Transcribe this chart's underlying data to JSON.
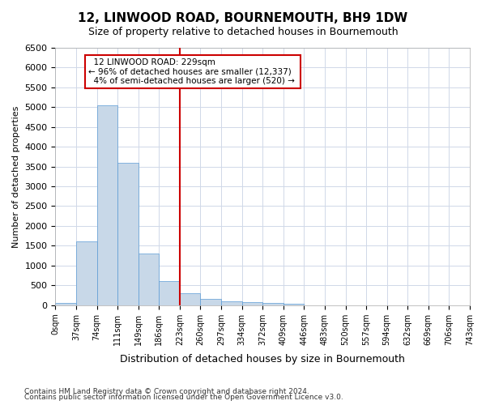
{
  "title": "12, LINWOOD ROAD, BOURNEMOUTH, BH9 1DW",
  "subtitle": "Size of property relative to detached houses in Bournemouth",
  "xlabel": "Distribution of detached houses by size in Bournemouth",
  "ylabel": "Number of detached properties",
  "footnote1": "Contains HM Land Registry data © Crown copyright and database right 2024.",
  "footnote2": "Contains public sector information licensed under the Open Government Licence v3.0.",
  "bin_labels": [
    "0sqm",
    "37sqm",
    "74sqm",
    "111sqm",
    "149sqm",
    "186sqm",
    "223sqm",
    "260sqm",
    "297sqm",
    "334sqm",
    "372sqm",
    "409sqm",
    "446sqm",
    "483sqm",
    "520sqm",
    "557sqm",
    "594sqm",
    "632sqm",
    "669sqm",
    "706sqm",
    "743sqm"
  ],
  "bar_values": [
    50,
    1600,
    5050,
    3600,
    1300,
    600,
    300,
    150,
    100,
    75,
    50,
    30,
    0,
    0,
    0,
    0,
    0,
    0,
    0,
    0
  ],
  "property_value": 229,
  "property_label": "12 LINWOOD ROAD: 229sqm",
  "pct_smaller": "96% of detached houses are smaller (12,337)",
  "pct_larger": "4% of semi-detached houses are larger (520)",
  "vline_x_bin": 6,
  "bar_color": "#c8d8e8",
  "bar_edge_color": "#5b9bd5",
  "vline_color": "#cc0000",
  "annotation_box_color": "#cc0000",
  "background_color": "#ffffff",
  "grid_color": "#d0d8e8",
  "ylim": [
    0,
    6500
  ],
  "yticks": [
    0,
    500,
    1000,
    1500,
    2000,
    2500,
    3000,
    3500,
    4000,
    4500,
    5000,
    5500,
    6000,
    6500
  ]
}
